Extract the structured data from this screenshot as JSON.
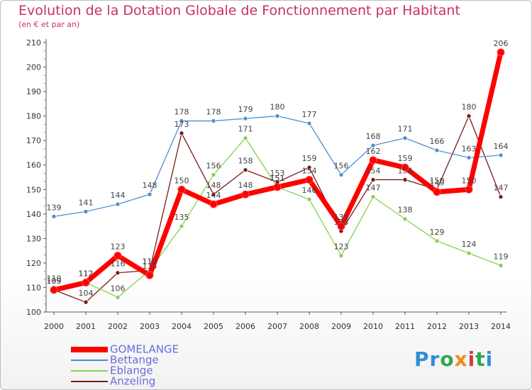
{
  "title": "Evolution de la Dotation Globale de Fonctionnement par Habitant",
  "subtitle": "(en € et par an)",
  "logo": "Proxiti",
  "chart_data": {
    "type": "line",
    "x": [
      "2000",
      "2001",
      "2002",
      "2003",
      "2004",
      "2005",
      "2006",
      "2007",
      "2008",
      "2009",
      "2010",
      "2011",
      "2012",
      "2013",
      "2014"
    ],
    "ylim": [
      100,
      210
    ],
    "yticks": [
      100,
      110,
      120,
      130,
      140,
      150,
      160,
      170,
      180,
      190,
      200,
      210
    ],
    "grid": false,
    "legend_position": "bottom-left",
    "series": [
      {
        "name": "GOMELANGE",
        "color": "#ff0000",
        "values": [
          109,
          112,
          123,
          115,
          150,
          144,
          148,
          151,
          154,
          135,
          162,
          159,
          149,
          150,
          206
        ]
      },
      {
        "name": "Bettange",
        "color": "#4b8fd0",
        "values": [
          139,
          141,
          144,
          148,
          178,
          178,
          179,
          180,
          177,
          156,
          168,
          171,
          166,
          163,
          164
        ]
      },
      {
        "name": "Eblange",
        "color": "#88d050",
        "values": [
          110,
          112,
          106,
          117,
          135,
          156,
          171,
          151,
          146,
          123,
          147,
          138,
          129,
          124,
          119
        ]
      },
      {
        "name": "Anzeling",
        "color": "#7a1a1a",
        "values": [
          109,
          104,
          116,
          117,
          173,
          148,
          158,
          153,
          159,
          133,
          154,
          154,
          150,
          180,
          147
        ]
      }
    ]
  }
}
